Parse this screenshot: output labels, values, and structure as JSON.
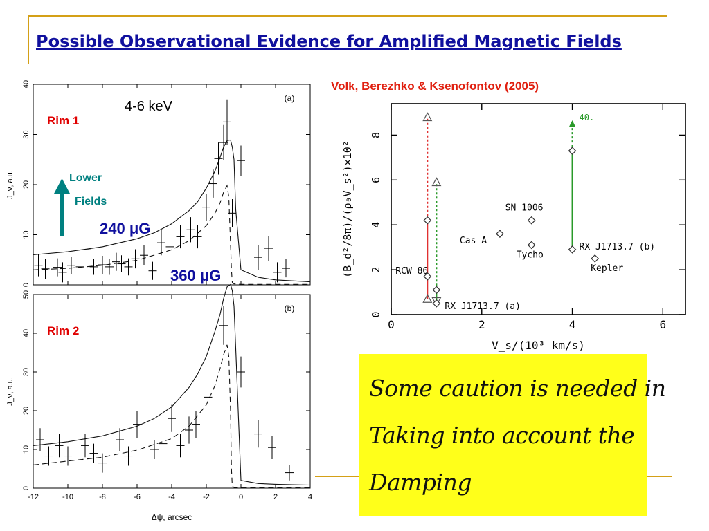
{
  "slide": {
    "title": "Possible Observational Evidence for Amplified Magnetic Fields",
    "citation": "Volk, Berezhko & Ksenofontov (2005)",
    "note_lines": [
      "Some caution is needed in",
      "Taking into account the",
      "Damping"
    ]
  },
  "colors": {
    "title": "#10109e",
    "citation": "#e02010",
    "accent_teal": "#008080",
    "rim_label": "#e00000",
    "field_label": "#10109e",
    "note_bg": "#ffff1a",
    "frame": "#d4a017",
    "red_bar": "#e03030",
    "green_bar": "#2a9a2a"
  },
  "icons": {
    "lower_fields_arrow": "arrow-up-icon"
  },
  "chart_data": [
    {
      "type": "line",
      "panel_tag": "(a)",
      "inset_label": "4-6 keV",
      "region_label": "Rim 1",
      "arrow_label_lines": [
        "Lower",
        "Fields"
      ],
      "curve_labels": [
        "240 μG",
        "360 μG"
      ],
      "ylabel": "J_ν, a.u.",
      "xlim": [
        -12,
        4
      ],
      "ylim": [
        0,
        40
      ],
      "xticks": [
        -12,
        -10,
        -8,
        -6,
        -4,
        -2,
        0,
        2,
        4
      ],
      "yticks": [
        0,
        10,
        20,
        30,
        40
      ],
      "series": [
        {
          "style": "solid",
          "x": [
            -12,
            -10,
            -8,
            -6,
            -5,
            -4,
            -3,
            -2.5,
            -2,
            -1.5,
            -1.2,
            -1.0,
            -0.8,
            -0.6,
            -0.5,
            -0.4,
            -0.3,
            0,
            1,
            2,
            3,
            4
          ],
          "y": [
            6,
            6.6,
            7.6,
            9.2,
            10.4,
            12.2,
            14.8,
            16.6,
            19.3,
            22.7,
            25.5,
            27.5,
            28.8,
            28.9,
            27.5,
            25,
            15,
            3,
            1.5,
            1,
            0.8,
            0.6
          ]
        },
        {
          "style": "dashed",
          "x": [
            -12,
            -10,
            -8,
            -6,
            -4,
            -3,
            -2,
            -1.5,
            -1.2,
            -1.0,
            -0.8,
            -0.7,
            -0.6,
            -0.55,
            -0.5,
            -0.4,
            0,
            2,
            4
          ],
          "y": [
            3,
            3.3,
            3.9,
            4.9,
            7,
            8.8,
            11.8,
            14.3,
            16.4,
            18.5,
            19.8,
            17.5,
            8,
            3,
            0.5,
            0.2,
            0.1,
            0.1,
            0.1
          ]
        }
      ],
      "points": [
        {
          "x": -11.7,
          "y": 3.9,
          "yerr": 2.2
        },
        {
          "x": -11.3,
          "y": 3.2,
          "yerr": 2
        },
        {
          "x": -10.6,
          "y": 3.5,
          "yerr": 1.8
        },
        {
          "x": -10.3,
          "y": 2.5,
          "yerr": 2
        },
        {
          "x": -9.8,
          "y": 3.9,
          "yerr": 1.7
        },
        {
          "x": -9.3,
          "y": 3.6,
          "yerr": 1.5
        },
        {
          "x": -8.9,
          "y": 7.0,
          "yerr": 2.2
        },
        {
          "x": -8.5,
          "y": 3.6,
          "yerr": 1.6
        },
        {
          "x": -8.0,
          "y": 4.0,
          "yerr": 1.8
        },
        {
          "x": -7.6,
          "y": 3.6,
          "yerr": 1.6
        },
        {
          "x": -7.2,
          "y": 4.6,
          "yerr": 1.8
        },
        {
          "x": -6.9,
          "y": 4.2,
          "yerr": 1.7
        },
        {
          "x": -6.5,
          "y": 3.6,
          "yerr": 1.7
        },
        {
          "x": -6.1,
          "y": 5.2,
          "yerr": 1.9
        },
        {
          "x": -5.6,
          "y": 5.9,
          "yerr": 2
        },
        {
          "x": -5.1,
          "y": 2.8,
          "yerr": 1.8
        },
        {
          "x": -4.6,
          "y": 8.4,
          "yerr": 2.5
        },
        {
          "x": -4.1,
          "y": 7.6,
          "yerr": 2.2
        },
        {
          "x": -3.5,
          "y": 9.6,
          "yerr": 2.3
        },
        {
          "x": -2.9,
          "y": 11.0,
          "yerr": 2.5
        },
        {
          "x": -2.5,
          "y": 9.6,
          "yerr": 2.3
        },
        {
          "x": -2.0,
          "y": 15.5,
          "yerr": 2.7
        },
        {
          "x": -1.6,
          "y": 20.2,
          "yerr": 2.8
        },
        {
          "x": -1.3,
          "y": 25.2,
          "yerr": 3.2
        },
        {
          "x": -1.0,
          "y": 28.4,
          "yerr": 3.5
        },
        {
          "x": -0.8,
          "y": 32.5,
          "yerr": 4.5
        },
        {
          "x": -0.5,
          "y": 14.3,
          "yerr": 2.8
        },
        {
          "x": 0.0,
          "y": 24.8,
          "yerr": 3
        },
        {
          "x": 1.0,
          "y": 5.5,
          "yerr": 2.5
        },
        {
          "x": 1.6,
          "y": 7.3,
          "yerr": 2.5
        },
        {
          "x": 2.1,
          "y": 2.5,
          "yerr": 2
        },
        {
          "x": 2.6,
          "y": 3.3,
          "yerr": 1.8
        }
      ]
    },
    {
      "type": "line",
      "panel_tag": "(b)",
      "region_label": "Rim 2",
      "xlabel": "Δψ, arcsec",
      "ylabel": "J_ν, a.u.",
      "xlim": [
        -12,
        4
      ],
      "ylim": [
        0,
        50
      ],
      "xticks": [
        -12,
        -10,
        -8,
        -6,
        -4,
        -2,
        0,
        2,
        4
      ],
      "yticks": [
        0,
        10,
        20,
        30,
        40,
        50
      ],
      "series": [
        {
          "style": "solid",
          "x": [
            -12,
            -10,
            -8,
            -6,
            -5,
            -4,
            -3,
            -2.5,
            -2,
            -1.5,
            -1.2,
            -1.0,
            -0.8,
            -0.6,
            -0.5,
            -0.4,
            -0.3,
            0,
            1,
            2,
            3,
            4
          ],
          "y": [
            11,
            12,
            13.5,
            16,
            18,
            21,
            26,
            29.5,
            34,
            40.5,
            45,
            49,
            52,
            52.6,
            51,
            47,
            36,
            2,
            1.2,
            1,
            0.9,
            0.8
          ]
        },
        {
          "style": "dashed",
          "x": [
            -12,
            -10,
            -8,
            -6,
            -4,
            -3,
            -2,
            -1.5,
            -1.2,
            -1.0,
            -0.8,
            -0.7,
            -0.6,
            -0.55,
            -0.5,
            -0.4,
            0,
            2,
            4
          ],
          "y": [
            6,
            7,
            8,
            9.8,
            12.8,
            16,
            21.5,
            26.5,
            31,
            34.5,
            37,
            34,
            20,
            5,
            0.5,
            0.2,
            0.1,
            0.1,
            0.1
          ]
        }
      ],
      "points": [
        {
          "x": -11.6,
          "y": 12.5,
          "yerr": 3
        },
        {
          "x": -11.1,
          "y": 8.3,
          "yerr": 2.5
        },
        {
          "x": -10.5,
          "y": 11.0,
          "yerr": 3
        },
        {
          "x": -10.0,
          "y": 8.3,
          "yerr": 2.5
        },
        {
          "x": -9.0,
          "y": 11.0,
          "yerr": 3
        },
        {
          "x": -8.5,
          "y": 9.0,
          "yerr": 2.5
        },
        {
          "x": -8.0,
          "y": 6.5,
          "yerr": 2.5
        },
        {
          "x": -7.0,
          "y": 12.5,
          "yerr": 3
        },
        {
          "x": -6.5,
          "y": 8.3,
          "yerr": 2.5
        },
        {
          "x": -6.0,
          "y": 16.5,
          "yerr": 3.5
        },
        {
          "x": -5.0,
          "y": 10.0,
          "yerr": 2.5
        },
        {
          "x": -4.5,
          "y": 11.5,
          "yerr": 3
        },
        {
          "x": -4.0,
          "y": 18.0,
          "yerr": 3.5
        },
        {
          "x": -3.5,
          "y": 11.0,
          "yerr": 3
        },
        {
          "x": -3.0,
          "y": 15.0,
          "yerr": 3.5
        },
        {
          "x": -2.6,
          "y": 16.5,
          "yerr": 3.5
        },
        {
          "x": -1.9,
          "y": 23.5,
          "yerr": 4
        },
        {
          "x": -1.0,
          "y": 42.0,
          "yerr": 5
        },
        {
          "x": 0.0,
          "y": 30.0,
          "yerr": 4
        },
        {
          "x": 1.0,
          "y": 14.0,
          "yerr": 3.5
        },
        {
          "x": 1.8,
          "y": 10.5,
          "yerr": 3
        },
        {
          "x": 2.8,
          "y": 4.0,
          "yerr": 2
        }
      ]
    },
    {
      "type": "scatter",
      "xlabel": "V_s/(10³ km/s)",
      "ylabel": "(B_d²/8π)/(ρ₀V_s²)×10²",
      "xlim": [
        0,
        6.5
      ],
      "ylim": [
        0,
        9.4
      ],
      "xticks": [
        0,
        2,
        4,
        6
      ],
      "yticks": [
        0,
        2,
        4,
        6,
        8
      ],
      "points": [
        {
          "x": 0.8,
          "y": 4.2,
          "label": ""
        },
        {
          "x": 0.8,
          "y": 1.7,
          "label": "RCW 86"
        },
        {
          "x": 1.0,
          "y": 1.1,
          "label": ""
        },
        {
          "x": 1.0,
          "y": 0.5,
          "label": "RX J1713.7 (a)"
        },
        {
          "x": 2.4,
          "y": 3.6,
          "label": "Cas A"
        },
        {
          "x": 3.1,
          "y": 4.2,
          "label": "SN 1006"
        },
        {
          "x": 3.1,
          "y": 3.1,
          "label": "Tycho"
        },
        {
          "x": 4.0,
          "y": 2.9,
          "label": "RX J1713.7 (b)"
        },
        {
          "x": 4.0,
          "y": 7.3,
          "label": ""
        },
        {
          "x": 4.5,
          "y": 2.5,
          "label": "Kepler"
        }
      ],
      "triangles": [
        {
          "x": 0.8,
          "y": 8.8,
          "dir": "up"
        },
        {
          "x": 0.8,
          "y": 0.7,
          "dir": "up"
        },
        {
          "x": 1.0,
          "y": 5.9,
          "dir": "up"
        },
        {
          "x": 1.0,
          "y": 0.6,
          "dir": "down"
        }
      ],
      "bars": [
        {
          "x": 0.8,
          "y0": 0.7,
          "y1": 8.8,
          "color": "#e03030",
          "dashed_above": 4.2
        },
        {
          "x": 1.0,
          "y0": 0.5,
          "y1": 5.9,
          "color": "#2a9a2a",
          "dashed_above": 1.1
        },
        {
          "x": 4.0,
          "y0": 2.9,
          "y1": 8.6,
          "color": "#2a9a2a",
          "dashed_above": 7.3,
          "arrow_label": "40."
        }
      ]
    }
  ]
}
